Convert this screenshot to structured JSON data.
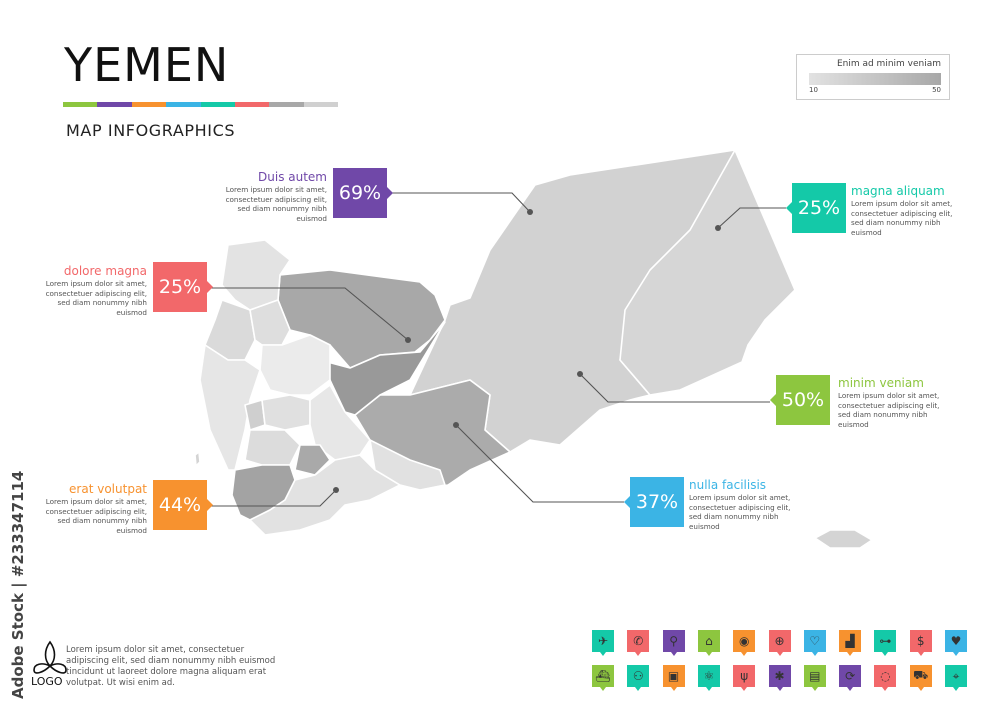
{
  "header": {
    "title": "YEMEN",
    "subtitle": "MAP INFOGRAPHICS",
    "color_bar": [
      "#8dc63f",
      "#7048a8",
      "#f7922f",
      "#3bb4e5",
      "#14c9a8",
      "#f2686a",
      "#a8a8a8",
      "#d0d0d0"
    ]
  },
  "legend": {
    "title": "Enim ad minim veniam",
    "min": "10",
    "max": "50"
  },
  "callouts": [
    {
      "title": "Duis autem",
      "value": "69%",
      "color": "#7048a8",
      "body": "Lorem ipsum dolor sit amet, consectetuer adipiscing elit, sed diam nonummy nibh euismod"
    },
    {
      "title": "dolore magna",
      "value": "25%",
      "color": "#f2686a",
      "body": "Lorem ipsum dolor sit amet, consectetuer adipiscing elit, sed diam nonummy nibh euismod"
    },
    {
      "title": "erat volutpat",
      "value": "44%",
      "color": "#f7922f",
      "body": "Lorem ipsum dolor sit amet, consectetuer adipiscing elit, sed diam nonummy nibh euismod"
    },
    {
      "title": "magna aliquam",
      "value": "25%",
      "color": "#14c9a8",
      "body": "Lorem ipsum dolor sit amet, consectetuer adipiscing elit, sed diam nonummy nibh euismod"
    },
    {
      "title": "minim veniam",
      "value": "50%",
      "color": "#8dc63f",
      "body": "Lorem ipsum dolor sit amet, consectetuer adipiscing elit, sed diam nonummy nibh euismod"
    },
    {
      "title": "nulla facilisis",
      "value": "37%",
      "color": "#3bb4e5",
      "body": "Lorem ipsum dolor sit amet, consectetuer adipiscing elit, sed diam nonummy nibh euismod"
    }
  ],
  "footer": {
    "logo_text": "LOGO",
    "text": "Lorem ipsum dolor sit amet, consectetuer adipiscing elit, sed diam nonummy nibh euismod tincidunt ut laoreet dolore magna aliquam erat volutpat. Ut wisi enim ad.",
    "watermark": "Adobe Stock | #233347114"
  },
  "icons": [
    [
      {
        "name": "airplane-icon",
        "glyph": "✈",
        "color": "#14c9a8"
      },
      {
        "name": "phone-icon",
        "glyph": "✆",
        "color": "#f2686a"
      },
      {
        "name": "pin-icon",
        "glyph": "⚲",
        "color": "#7048a8"
      },
      {
        "name": "bank-icon",
        "glyph": "⌂",
        "color": "#8dc63f"
      },
      {
        "name": "location-icon",
        "glyph": "◉",
        "color": "#f7922f"
      },
      {
        "name": "globe-icon",
        "glyph": "⊕",
        "color": "#f2686a"
      },
      {
        "name": "heart-icon",
        "glyph": "♡",
        "color": "#3bb4e5"
      },
      {
        "name": "factory-icon",
        "glyph": "▟",
        "color": "#f7922f"
      },
      {
        "name": "car-icon",
        "glyph": "⊶",
        "color": "#14c9a8"
      },
      {
        "name": "dollar-coin-icon",
        "glyph": "$",
        "color": "#f2686a"
      },
      {
        "name": "shopping-bag-icon",
        "glyph": "♥",
        "color": "#3bb4e5"
      }
    ],
    [
      {
        "name": "ship-icon",
        "glyph": "⛴",
        "color": "#8dc63f"
      },
      {
        "name": "motorcycle-icon",
        "glyph": "⚇",
        "color": "#14c9a8"
      },
      {
        "name": "bus-icon",
        "glyph": "▣",
        "color": "#f7922f"
      },
      {
        "name": "atom-icon",
        "glyph": "⚛",
        "color": "#14c9a8"
      },
      {
        "name": "fork-knife-icon",
        "glyph": "ψ",
        "color": "#f2686a"
      },
      {
        "name": "medical-icon",
        "glyph": "✱",
        "color": "#7048a8"
      },
      {
        "name": "shop-icon",
        "glyph": "▤",
        "color": "#8dc63f"
      },
      {
        "name": "money-exchange-icon",
        "glyph": "⟳",
        "color": "#7048a8"
      },
      {
        "name": "drop-icon",
        "glyph": "◌",
        "color": "#f2686a"
      },
      {
        "name": "truck-icon",
        "glyph": "⛟",
        "color": "#f7922f"
      },
      {
        "name": "map-pin-icon",
        "glyph": "⌖",
        "color": "#14c9a8"
      }
    ]
  ]
}
